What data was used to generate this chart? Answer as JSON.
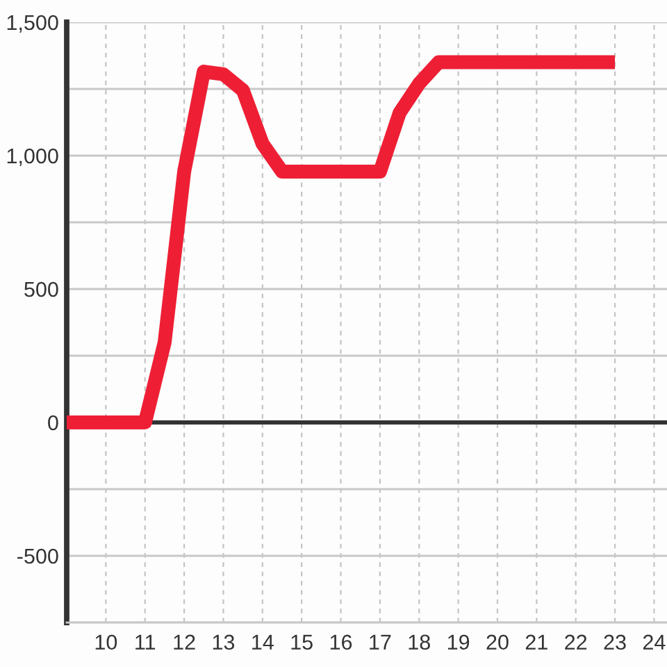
{
  "chart_data": {
    "type": "line",
    "x": [
      9,
      11,
      11.5,
      12,
      12.5,
      13,
      13.5,
      14,
      14.5,
      17,
      17.5,
      18,
      18.5,
      23
    ],
    "values": [
      0,
      0,
      300,
      940,
      1315,
      1305,
      1245,
      1045,
      940,
      940,
      1160,
      1270,
      1350,
      1350
    ],
    "color": "#ee1f35",
    "xlim": [
      9,
      24.33
    ],
    "xticks": [
      10,
      11,
      12,
      13,
      14,
      15,
      16,
      17,
      18,
      19,
      20,
      21,
      22,
      23,
      24
    ],
    "ylim": [
      -750,
      1500
    ],
    "yticks": [
      {
        "value": -750,
        "label": null
      },
      {
        "value": -500,
        "label": "-500"
      },
      {
        "value": -250,
        "label": null
      },
      {
        "value": 0,
        "label": "0"
      },
      {
        "value": 250,
        "label": null
      },
      {
        "value": 500,
        "label": "500"
      },
      {
        "value": 750,
        "label": null
      },
      {
        "value": 1000,
        "label": "1,000"
      },
      {
        "value": 1250,
        "label": null
      },
      {
        "value": 1500,
        "label": "1,500"
      }
    ],
    "grid": true,
    "line_style": "solid",
    "ref_lines": [
      {
        "axis": "y",
        "value": 0,
        "color": "#333333"
      }
    ]
  }
}
